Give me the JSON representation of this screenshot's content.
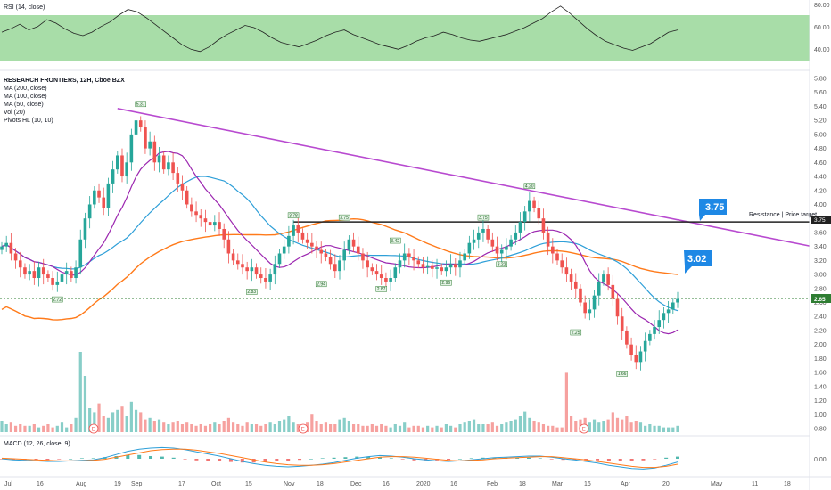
{
  "colors": {
    "up": "#26a69a",
    "down": "#ef5350",
    "ma200": "#ff7a1a",
    "ma100": "#2e9fd8",
    "ma50": "#9c27b0",
    "trendline": "#b84ad0",
    "resistance": "#222222",
    "rsi_band": "#9ed99e",
    "price_tag": "#2e7d32",
    "callout": "#1e88e5",
    "macd": "#2e9fd8",
    "signal": "#ff7a1a"
  },
  "rsi_pane": {
    "label": "RSI (14, close)",
    "ticks": [
      "80.00",
      "60.00",
      "40.00"
    ],
    "band_range": [
      30,
      70
    ]
  },
  "main_pane": {
    "header": [
      "RESEARCH FRONTIERS, 12H, Cboe BZX",
      "MA (200, close)",
      "MA (100, close)",
      "MA (50, close)",
      "Vol (20)",
      "Pivots HL (10, 10)"
    ],
    "price_ticks": [
      "5.80",
      "5.60",
      "5.40",
      "5.20",
      "5.00",
      "4.80",
      "4.60",
      "4.40",
      "4.20",
      "4.00",
      "3.80",
      "3.60",
      "3.40",
      "3.20",
      "3.00",
      "2.80",
      "2.60",
      "2.40",
      "2.20",
      "2.00",
      "1.80",
      "1.60",
      "1.40",
      "1.20",
      "1.00",
      "0.80"
    ],
    "last_price": "2.65",
    "resistance_price": "3.75",
    "resistance_label": "Resistance | Price target",
    "callout_resistance": "3.75",
    "callout_target": "3.02",
    "earnings_marker": "E"
  },
  "macd_pane": {
    "label": "MACD (12, 26, close, 9)",
    "ticks": [
      "0.00"
    ]
  },
  "date_axis": [
    "Jul",
    "16",
    "Aug",
    "19",
    "Sep",
    "17",
    "Oct",
    "15",
    "Nov",
    "18",
    "Dec",
    "16",
    "2020",
    "16",
    "Feb",
    "18",
    "Mar",
    "16",
    "Apr",
    "20",
    "May",
    "11",
    "18"
  ],
  "chart_data": {
    "type": "candlestick",
    "title": "RESEARCH FRONTIERS, 12H, Cboe BZX",
    "x_axis_labels": [
      "Jul",
      "16",
      "Aug",
      "19",
      "Sep",
      "17",
      "Oct",
      "15",
      "Nov",
      "18",
      "Dec",
      "16",
      "2020",
      "16",
      "Feb",
      "18",
      "Mar",
      "16",
      "Apr",
      "20",
      "May",
      "11",
      "18"
    ],
    "ylim": [
      0.7,
      5.9
    ],
    "close_series": [
      3.4,
      3.45,
      3.3,
      3.2,
      3.1,
      3.0,
      3.05,
      2.95,
      3.1,
      3.0,
      2.95,
      2.85,
      2.9,
      3.0,
      3.05,
      2.95,
      3.1,
      3.5,
      3.8,
      4.0,
      4.2,
      4.1,
      3.95,
      4.3,
      4.5,
      4.7,
      4.4,
      4.6,
      5.0,
      5.2,
      5.1,
      4.8,
      4.9,
      4.6,
      4.7,
      4.5,
      4.6,
      4.45,
      4.3,
      4.2,
      4.0,
      3.9,
      3.85,
      3.8,
      3.75,
      3.7,
      3.75,
      3.65,
      3.5,
      3.3,
      3.2,
      3.15,
      3.1,
      3.05,
      3.1,
      3.0,
      2.95,
      2.9,
      3.0,
      3.15,
      3.3,
      3.4,
      3.55,
      3.7,
      3.6,
      3.5,
      3.45,
      3.4,
      3.35,
      3.3,
      3.25,
      3.15,
      3.05,
      3.2,
      3.35,
      3.5,
      3.4,
      3.3,
      3.2,
      3.1,
      3.05,
      3.0,
      2.95,
      2.9,
      2.95,
      3.1,
      3.2,
      3.3,
      3.25,
      3.2,
      3.15,
      3.1,
      3.12,
      3.08,
      3.1,
      3.05,
      3.1,
      3.15,
      3.1,
      3.2,
      3.3,
      3.45,
      3.5,
      3.6,
      3.65,
      3.5,
      3.4,
      3.3,
      3.35,
      3.4,
      3.5,
      3.6,
      3.75,
      3.9,
      4.05,
      3.95,
      3.8,
      3.6,
      3.4,
      3.3,
      3.2,
      3.1,
      3.0,
      2.9,
      2.8,
      2.6,
      2.45,
      2.5,
      2.7,
      2.9,
      3.0,
      2.85,
      2.65,
      2.4,
      2.2,
      2.0,
      1.85,
      1.75,
      1.9,
      2.05,
      2.15,
      2.25,
      2.35,
      2.45,
      2.5,
      2.6,
      2.65
    ],
    "pivot_labels": [
      {
        "value": "5.37",
        "idx": 30
      },
      {
        "value": "2.72",
        "idx": 12
      },
      {
        "value": "3.78",
        "idx": 63
      },
      {
        "value": "3.75",
        "idx": 74
      },
      {
        "value": "3.75",
        "idx": 104
      },
      {
        "value": "3.42",
        "idx": 85
      },
      {
        "value": "2.83",
        "idx": 54
      },
      {
        "value": "2.94",
        "idx": 69
      },
      {
        "value": "2.87",
        "idx": 82
      },
      {
        "value": "2.96",
        "idx": 96
      },
      {
        "value": "3.22",
        "idx": 108
      },
      {
        "value": "4.20",
        "idx": 114
      },
      {
        "value": "2.25",
        "idx": 124
      },
      {
        "value": "1.66",
        "idx": 134
      }
    ],
    "resistance_level": 3.75,
    "trendline": [
      {
        "idx": 25,
        "price": 5.37
      },
      {
        "idx": 175,
        "price": 3.4
      }
    ],
    "rsi_band": [
      30,
      70
    ],
    "volume": [
      0.7,
      0.5,
      0.6,
      0.4,
      0.5,
      0.4,
      0.4,
      0.5,
      0.3,
      0.4,
      0.5,
      0.3,
      0.4,
      0.6,
      0.3,
      0.5,
      0.9,
      5.0,
      3.5,
      1.5,
      1.2,
      1.8,
      1.0,
      0.9,
      1.2,
      1.4,
      1.6,
      1.0,
      1.9,
      1.4,
      1.2,
      0.8,
      0.9,
      0.7,
      0.8,
      0.6,
      0.5,
      0.6,
      0.7,
      0.5,
      0.6,
      0.5,
      0.4,
      0.5,
      0.4,
      0.5,
      0.6,
      0.5,
      0.7,
      0.9,
      0.6,
      0.5,
      0.4,
      0.6,
      0.5,
      0.5,
      0.4,
      0.5,
      0.6,
      0.5,
      0.7,
      0.8,
      1.0,
      0.6,
      0.5,
      0.5,
      0.6,
      1.1,
      0.7,
      0.5,
      0.6,
      0.5,
      0.5,
      0.8,
      0.9,
      0.7,
      0.5,
      0.5,
      0.4,
      0.4,
      0.5,
      0.4,
      0.5,
      0.4,
      0.3,
      0.5,
      0.4,
      0.6,
      0.3,
      0.4,
      0.4,
      0.3,
      0.4,
      0.3,
      0.4,
      0.3,
      0.5,
      0.4,
      0.3,
      0.5,
      0.6,
      0.7,
      0.8,
      0.5,
      0.5,
      0.5,
      0.6,
      0.4,
      0.5,
      0.6,
      0.7,
      0.8,
      1.0,
      1.3,
      0.9,
      0.7,
      0.6,
      0.5,
      0.4,
      0.4,
      0.3,
      0.3,
      3.7,
      1.0,
      0.7,
      0.8,
      0.9,
      0.6,
      0.8,
      0.6,
      0.7,
      0.8,
      1.2,
      0.9,
      0.8,
      1.0,
      0.6,
      0.7,
      0.6,
      0.4,
      0.5,
      0.4,
      0.4,
      0.3,
      0.3,
      0.3,
      0.4
    ],
    "macd": [
      0.0,
      -0.02,
      -0.03,
      -0.04,
      -0.05,
      -0.05,
      -0.04,
      -0.03,
      -0.02,
      0.02,
      0.08,
      0.14,
      0.18,
      0.2,
      0.21,
      0.2,
      0.17,
      0.13,
      0.09,
      0.05,
      0.0,
      -0.05,
      -0.09,
      -0.12,
      -0.14,
      -0.15,
      -0.14,
      -0.12,
      -0.1,
      -0.07,
      -0.03,
      0.01,
      0.04,
      0.06,
      0.05,
      0.03,
      0.0,
      -0.02,
      -0.04,
      -0.05,
      -0.04,
      -0.02,
      0.0,
      0.02,
      0.03,
      0.04,
      0.05,
      0.05,
      0.03,
      0.0,
      -0.02,
      -0.05,
      -0.08,
      -0.12,
      -0.15,
      -0.18,
      -0.19,
      -0.17,
      -0.12,
      -0.06
    ],
    "signal": [
      0.01,
      0.0,
      -0.01,
      -0.02,
      -0.03,
      -0.04,
      -0.04,
      -0.04,
      -0.03,
      -0.01,
      0.03,
      0.07,
      0.11,
      0.15,
      0.17,
      0.18,
      0.18,
      0.16,
      0.13,
      0.1,
      0.06,
      0.02,
      -0.02,
      -0.06,
      -0.09,
      -0.11,
      -0.12,
      -0.12,
      -0.11,
      -0.09,
      -0.06,
      -0.03,
      0.0,
      0.03,
      0.04,
      0.04,
      0.03,
      0.01,
      -0.01,
      -0.03,
      -0.04,
      -0.03,
      -0.02,
      0.0,
      0.01,
      0.02,
      0.03,
      0.04,
      0.04,
      0.02,
      0.0,
      -0.02,
      -0.05,
      -0.08,
      -0.11,
      -0.14,
      -0.16,
      -0.16,
      -0.14,
      -0.1
    ],
    "rsi": [
      55,
      58,
      62,
      57,
      60,
      66,
      63,
      58,
      54,
      52,
      55,
      60,
      64,
      70,
      75,
      73,
      68,
      62,
      56,
      50,
      44,
      40,
      38,
      42,
      48,
      53,
      57,
      61,
      59,
      55,
      50,
      46,
      44,
      42,
      45,
      48,
      52,
      55,
      57,
      53,
      50,
      47,
      44,
      42,
      40,
      43,
      47,
      50,
      52,
      55,
      53,
      50,
      48,
      47,
      49,
      51,
      53,
      56,
      59,
      63,
      67,
      73,
      78,
      72,
      65,
      58,
      52,
      47,
      44,
      41,
      39,
      42,
      45,
      50,
      55,
      57
    ]
  }
}
